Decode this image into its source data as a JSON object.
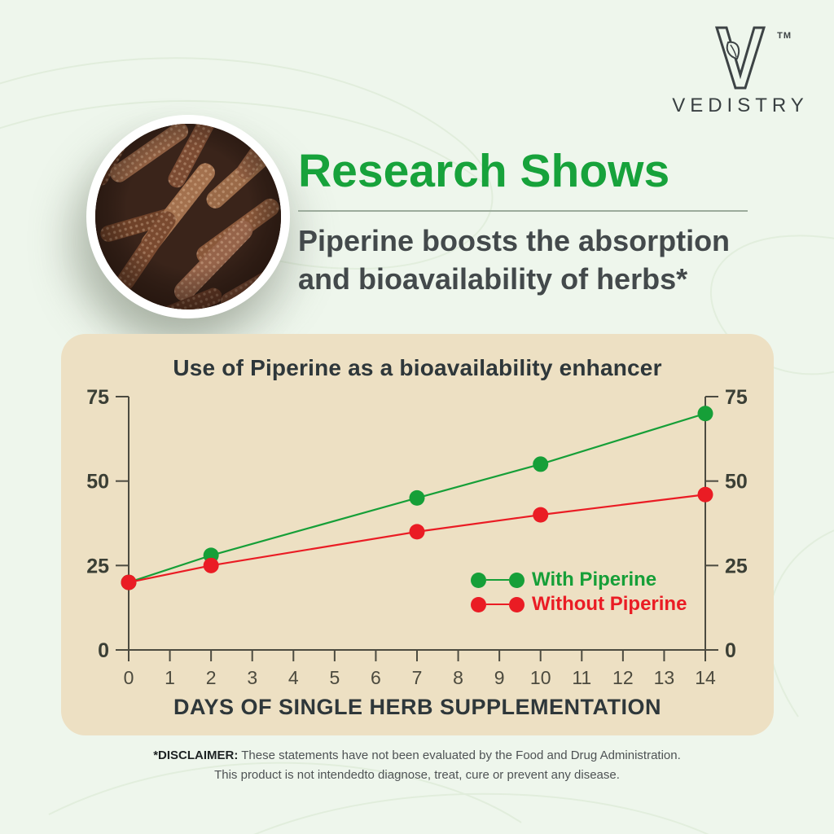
{
  "brand": {
    "wordmark": "VEDISTRY",
    "trademark": "TM"
  },
  "hero": {
    "title": "Research Shows",
    "subtitle_line1": "Piperine boosts the absorption",
    "subtitle_line2": "and bioavailability of herbs*",
    "image": "long-pepper-photo"
  },
  "chart_data": {
    "type": "line",
    "title": "Use of Piperine as a bioavailability enhancer",
    "xlabel": "DAYS OF SINGLE HERB SUPPLEMENTATION",
    "ylabel": "",
    "x": [
      0,
      2,
      7,
      10,
      14
    ],
    "x_ticks": [
      0,
      1,
      2,
      3,
      4,
      5,
      6,
      7,
      8,
      9,
      10,
      11,
      12,
      13,
      14
    ],
    "xlim": [
      0,
      14
    ],
    "y_ticks": [
      0,
      25,
      50,
      75
    ],
    "ylim": [
      0,
      75
    ],
    "dual_y_axis": true,
    "grid": false,
    "legend_position": "inside bottom-right",
    "series": [
      {
        "name": "With Piperine",
        "color": "#169f38",
        "values": [
          20,
          28,
          45,
          55,
          70
        ]
      },
      {
        "name": "Without Piperine",
        "color": "#ea1c24",
        "values": [
          20,
          25,
          35,
          40,
          46
        ]
      }
    ]
  },
  "disclaimer": {
    "label": "*DISCLAIMER:",
    "line1": " These statements have not been evaluated by the Food and Drug Administration.",
    "line2": "This product is not intendedto diagnose, treat, cure or prevent any disease."
  },
  "colors": {
    "background": "#eef6ec",
    "panel": "#ede0c3",
    "accent_green": "#17a23b",
    "accent_red": "#ea1c24",
    "axis": "#4c4b40",
    "dark_text": "#2e373a"
  }
}
